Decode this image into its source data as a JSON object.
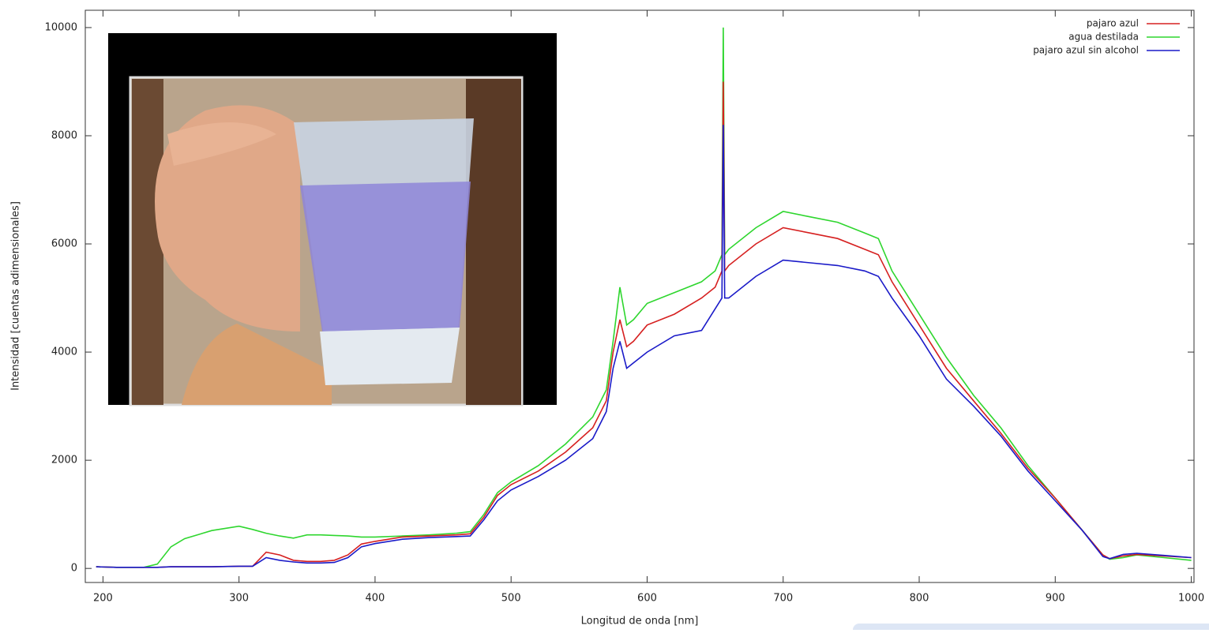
{
  "chart_data": {
    "type": "line",
    "xlabel": "Longitud de onda [nm]",
    "ylabel": "Intensidad [cuentas adimensionales]",
    "x": [
      195,
      210,
      230,
      240,
      250,
      260,
      280,
      300,
      310,
      320,
      330,
      340,
      350,
      360,
      370,
      380,
      390,
      400,
      420,
      440,
      460,
      470,
      480,
      490,
      500,
      520,
      540,
      560,
      570,
      575,
      580,
      585,
      590,
      600,
      620,
      640,
      650,
      655,
      656,
      657,
      660,
      680,
      700,
      720,
      740,
      760,
      770,
      780,
      800,
      820,
      840,
      860,
      880,
      900,
      920,
      935,
      940,
      950,
      960,
      980,
      1000
    ],
    "series": [
      {
        "name": "pajaro azul",
        "color": "#d62020",
        "values": [
          30,
          20,
          20,
          20,
          30,
          30,
          30,
          40,
          40,
          300,
          250,
          150,
          130,
          130,
          150,
          250,
          450,
          500,
          580,
          600,
          620,
          640,
          950,
          1350,
          1550,
          1800,
          2150,
          2600,
          3100,
          4000,
          4600,
          4100,
          4200,
          4500,
          4700,
          5000,
          5200,
          5500,
          9000,
          5500,
          5600,
          6000,
          6300,
          6200,
          6100,
          5900,
          5800,
          5300,
          4500,
          3700,
          3100,
          2500,
          1850,
          1300,
          700,
          250,
          180,
          230,
          260,
          230,
          200
        ]
      },
      {
        "name": "agua destilada",
        "color": "#2ed62e",
        "values": [
          30,
          20,
          20,
          80,
          400,
          550,
          700,
          780,
          720,
          650,
          600,
          560,
          620,
          620,
          610,
          600,
          580,
          580,
          600,
          620,
          650,
          680,
          1000,
          1400,
          1600,
          1900,
          2300,
          2800,
          3300,
          4200,
          5200,
          4500,
          4600,
          4900,
          5100,
          5300,
          5500,
          5800,
          10000,
          5800,
          5900,
          6300,
          6600,
          6500,
          6400,
          6200,
          6100,
          5500,
          4700,
          3900,
          3200,
          2600,
          1900,
          1300,
          700,
          250,
          170,
          200,
          250,
          200,
          150
        ]
      },
      {
        "name": "pajaro azul sin alcohol",
        "color": "#1a1ac8",
        "values": [
          30,
          20,
          20,
          20,
          30,
          30,
          30,
          40,
          40,
          200,
          150,
          120,
          100,
          100,
          110,
          200,
          400,
          460,
          540,
          570,
          590,
          600,
          900,
          1250,
          1450,
          1700,
          2000,
          2400,
          2900,
          3700,
          4200,
          3700,
          3800,
          4000,
          4300,
          4400,
          4800,
          5000,
          8200,
          5000,
          5000,
          5400,
          5700,
          5650,
          5600,
          5500,
          5400,
          5000,
          4300,
          3500,
          3000,
          2450,
          1800,
          1250,
          700,
          220,
          180,
          260,
          280,
          240,
          200
        ]
      }
    ],
    "xlim": [
      187,
      1002
    ],
    "ylim": [
      -260,
      10320
    ],
    "xticks": [
      200,
      300,
      400,
      500,
      600,
      700,
      800,
      900,
      1000
    ],
    "yticks": [
      0,
      2000,
      4000,
      6000,
      8000,
      10000
    ],
    "legend": "top-right"
  }
}
